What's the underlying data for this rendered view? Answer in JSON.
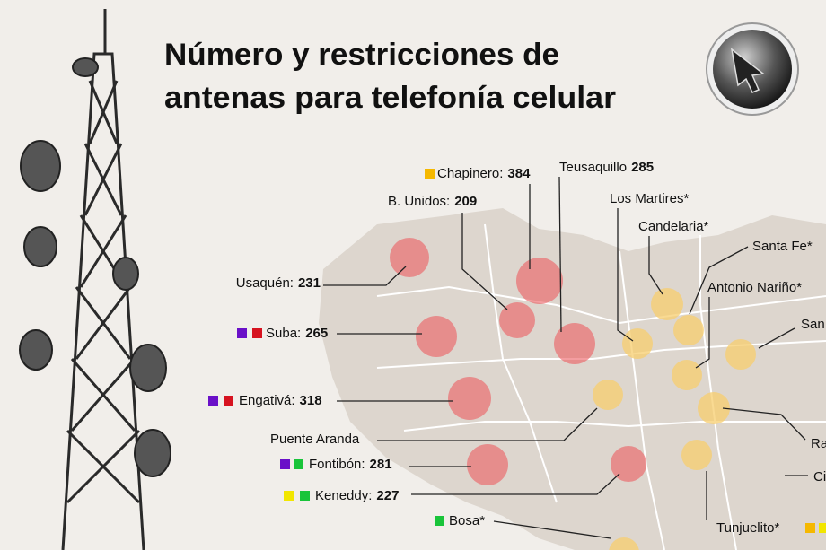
{
  "header": {
    "title_lines": [
      "Número y restricciones de",
      "antenas para telefonía celular"
    ]
  },
  "labels": [
    {
      "name": "Chapinero:",
      "value": 384
    },
    {
      "name": "Teusaquillo",
      "value": 285
    },
    {
      "name": "B. Unidos:",
      "value": 209
    },
    {
      "name": "Los Martires*"
    },
    {
      "name": "Candelaria*"
    },
    {
      "name": "Santa Fe*"
    },
    {
      "name": "Antonio Nariño*"
    },
    {
      "name": "San"
    },
    {
      "name": "Usaquén:",
      "value": 231
    },
    {
      "name": "Suba:",
      "value": 265
    },
    {
      "name": "Engativá:",
      "value": 318
    },
    {
      "name": "Ra"
    },
    {
      "name": "Puente Aranda"
    },
    {
      "name": "Fontibón:",
      "value": 281
    },
    {
      "name": "Ci"
    },
    {
      "name": "Keneddy:",
      "value": 227
    },
    {
      "name": "Bosa*"
    },
    {
      "name": "Tunjuelito*"
    }
  ]
}
